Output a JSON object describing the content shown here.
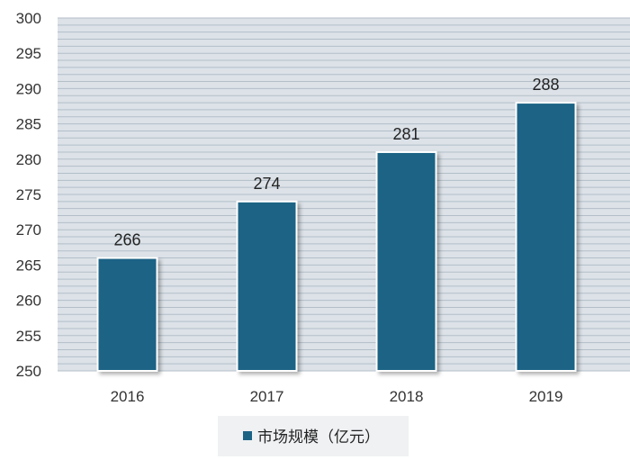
{
  "chart_data": {
    "type": "bar",
    "categories": [
      "2016",
      "2017",
      "2018",
      "2019"
    ],
    "series": [
      {
        "name": "市场规模（亿元）",
        "values": [
          266,
          274,
          281,
          288
        ]
      }
    ],
    "data_labels": [
      "266",
      "274",
      "281",
      "288"
    ],
    "title": "",
    "xlabel": "",
    "ylabel": "",
    "ylim": [
      250,
      300
    ],
    "y_ticks": [
      "250",
      "255",
      "260",
      "265",
      "270",
      "275",
      "280",
      "285",
      "290",
      "295",
      "300"
    ],
    "grid": true,
    "legend_position": "bottom",
    "colors": {
      "bar": "#1b6385",
      "plot_background": "#dce2e8",
      "gridline": "#b3bec8",
      "legend_background": "#eff1f3"
    }
  }
}
